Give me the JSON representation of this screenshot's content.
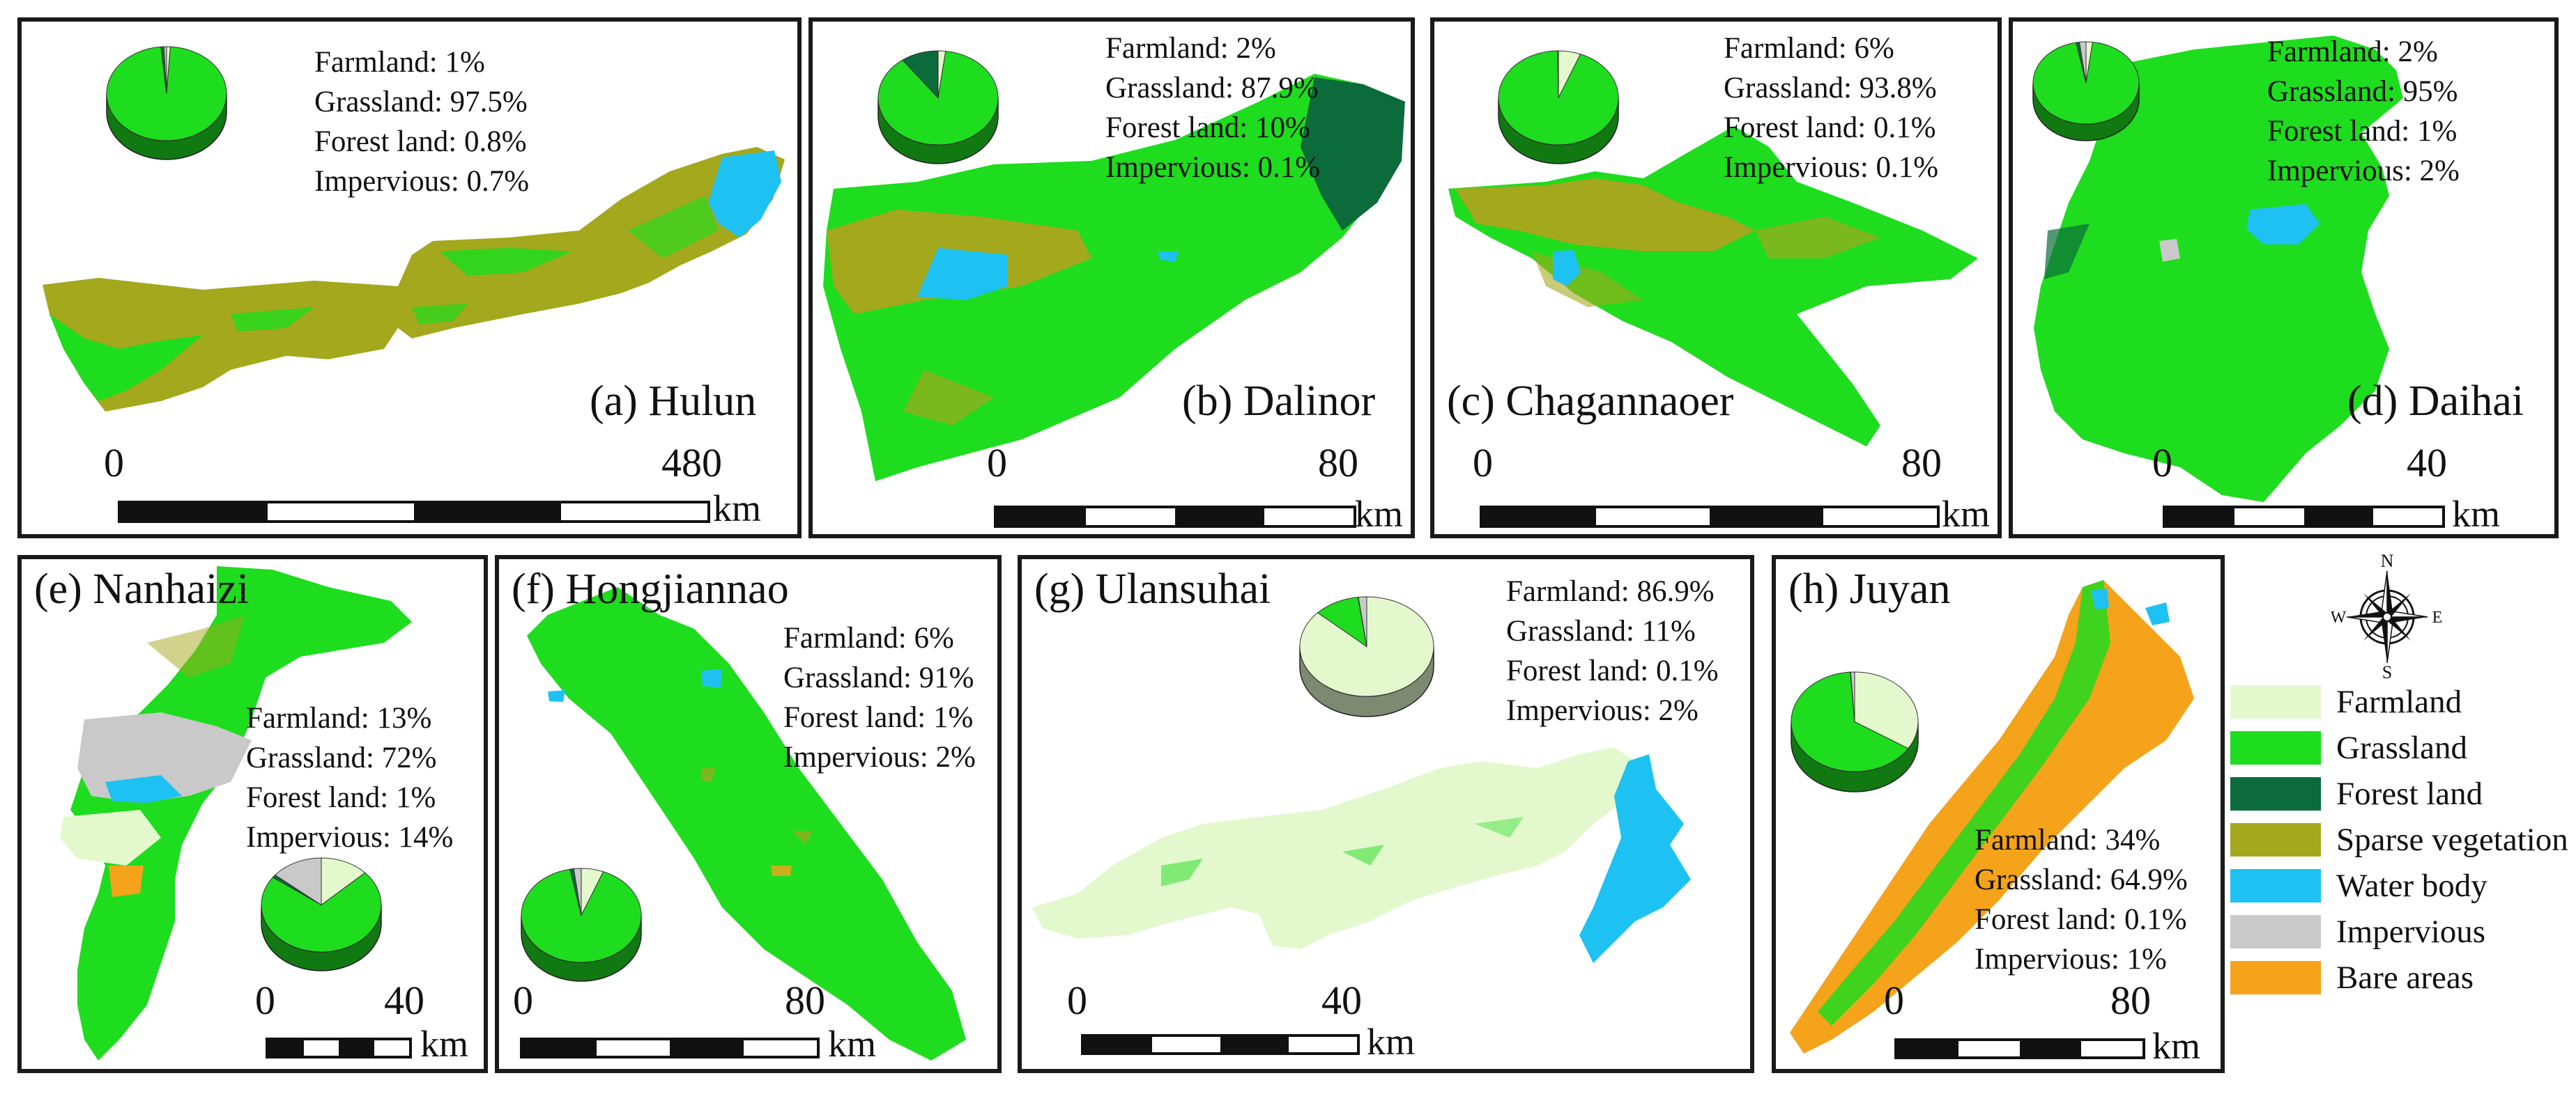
{
  "colors": {
    "farmland": "#E3F9CD",
    "grassland": "#1EDC1E",
    "forest_land": "#0B6B3A",
    "sparse_vegetation": "#A3A81C",
    "water_body": "#1EC2F2",
    "impervious": "#C9C9C9",
    "bare_areas": "#F5A31A"
  },
  "legend": {
    "items": [
      {
        "label": "Farmland",
        "color": "#E3F9CD"
      },
      {
        "label": "Grassland",
        "color": "#1EDC1E"
      },
      {
        "label": "Forest land",
        "color": "#0B6B3A"
      },
      {
        "label": "Sparse vegetation",
        "color": "#A3A81C"
      },
      {
        "label": "Water body",
        "color": "#1EC2F2"
      },
      {
        "label": "Impervious",
        "color": "#C9C9C9"
      },
      {
        "label": "Bare areas",
        "color": "#F5A31A"
      }
    ]
  },
  "compass": {
    "n": "N",
    "s": "S",
    "e": "E",
    "w": "W"
  },
  "panels": {
    "a": {
      "title": "(a) Hulun",
      "stats": [
        "Farmland: 1%",
        "Grassland: 97.5%",
        "Forest land: 0.8%",
        "Impervious: 0.7%"
      ],
      "scale": {
        "start": "0",
        "end": "480",
        "unit": "km"
      },
      "pie": {
        "Farmland": 1,
        "Grassland": 97.5,
        "Forest land": 0.8,
        "Impervious": 0.7
      }
    },
    "b": {
      "title": "(b) Dalinor",
      "stats": [
        "Farmland: 2%",
        "Grassland: 87.9%",
        "Forest land: 10%",
        "Impervious: 0.1%"
      ],
      "scale": {
        "start": "0",
        "end": "80",
        "unit": "km"
      },
      "pie": {
        "Farmland": 2,
        "Grassland": 87.9,
        "Forest land": 10,
        "Impervious": 0.1
      }
    },
    "c": {
      "title": "(c) Chagannaoer",
      "stats": [
        "Farmland: 6%",
        "Grassland: 93.8%",
        "Forest land: 0.1%",
        "Impervious: 0.1%"
      ],
      "scale": {
        "start": "0",
        "end": "80",
        "unit": "km"
      },
      "pie": {
        "Farmland": 6,
        "Grassland": 93.8,
        "Forest land": 0.1,
        "Impervious": 0.1
      }
    },
    "d": {
      "title": "(d) Daihai",
      "stats": [
        "Farmland: 2%",
        "Grassland: 95%",
        "Forest land: 1%",
        "Impervious: 2%"
      ],
      "scale": {
        "start": "0",
        "end": "40",
        "unit": "km"
      },
      "pie": {
        "Farmland": 2,
        "Grassland": 95,
        "Forest land": 1,
        "Impervious": 2
      }
    },
    "e": {
      "title": "(e) Nanhaizi",
      "stats": [
        "Farmland: 13%",
        "Grassland: 72%",
        "Forest land: 1%",
        "Impervious: 14%"
      ],
      "scale": {
        "start": "0",
        "end": "40",
        "unit": "km"
      },
      "pie": {
        "Farmland": 13,
        "Grassland": 72,
        "Forest land": 1,
        "Impervious": 14
      }
    },
    "f": {
      "title": "(f) Hongjiannao",
      "stats": [
        "Farmland: 6%",
        "Grassland: 91%",
        "Forest land: 1%",
        "Impervious: 2%"
      ],
      "scale": {
        "start": "0",
        "end": "80",
        "unit": "km"
      },
      "pie": {
        "Farmland": 6,
        "Grassland": 91,
        "Forest land": 1,
        "Impervious": 2
      }
    },
    "g": {
      "title": "(g) Ulansuhai",
      "stats": [
        "Farmland: 86.9%",
        "Grassland: 11%",
        "Forest land: 0.1%",
        "Impervious: 2%"
      ],
      "scale": {
        "start": "0",
        "end": "40",
        "unit": "km"
      },
      "pie": {
        "Farmland": 86.9,
        "Grassland": 11,
        "Forest land": 0.1,
        "Impervious": 2
      }
    },
    "h": {
      "title": "(h) Juyan",
      "stats": [
        "Farmland: 34%",
        "Grassland: 64.9%",
        "Forest land: 0.1%",
        "Impervious: 1%"
      ],
      "scale": {
        "start": "0",
        "end": "80",
        "unit": "km"
      },
      "pie": {
        "Farmland": 34,
        "Grassland": 64.9,
        "Forest land": 0.1,
        "Impervious": 1
      }
    }
  }
}
